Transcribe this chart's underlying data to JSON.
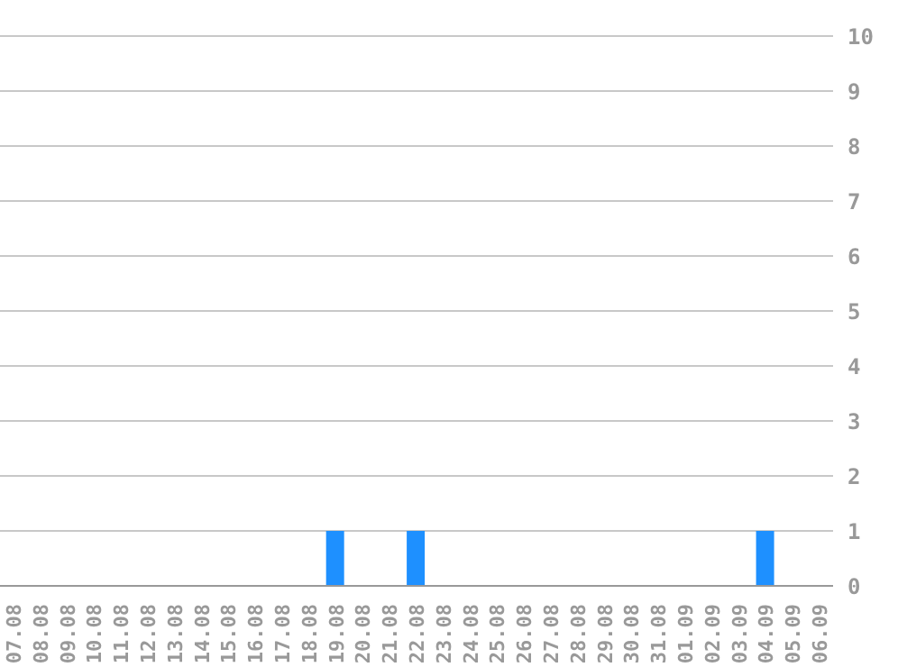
{
  "chart_data": {
    "type": "bar",
    "categories": [
      "07.08",
      "08.08",
      "09.08",
      "10.08",
      "11.08",
      "12.08",
      "13.08",
      "14.08",
      "15.08",
      "16.08",
      "17.08",
      "18.08",
      "19.08",
      "20.08",
      "21.08",
      "22.08",
      "23.08",
      "24.08",
      "25.08",
      "26.08",
      "27.08",
      "28.08",
      "29.08",
      "30.08",
      "31.08",
      "01.09",
      "02.09",
      "03.09",
      "04.09",
      "05.09",
      "06.09"
    ],
    "values": [
      0,
      0,
      0,
      0,
      0,
      0,
      0,
      0,
      0,
      0,
      0,
      0,
      1,
      0,
      0,
      1,
      0,
      0,
      0,
      0,
      0,
      0,
      0,
      0,
      0,
      0,
      0,
      0,
      1,
      0,
      0
    ],
    "color": "#1e90ff",
    "ylim": [
      0,
      10
    ],
    "yticks": [
      0,
      1,
      2,
      3,
      4,
      5,
      6,
      7,
      8,
      9,
      10
    ],
    "grid": "y",
    "legend": false
  }
}
